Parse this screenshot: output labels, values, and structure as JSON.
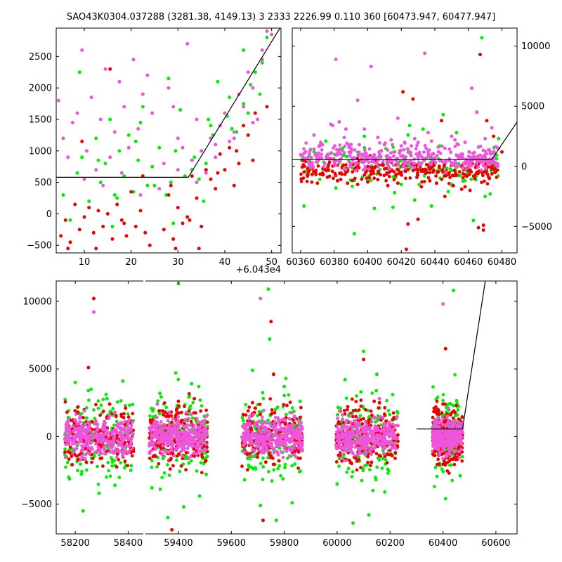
{
  "figure_title": "SAO43K0304.037288 (3281.38, 4149.13)    3 2333 2226.99 0.110 360 [60473.947, 60477.947]",
  "colors": {
    "green": "#00ee00",
    "red": "#ee0000",
    "pink": "#ee55dd",
    "model_line": "#000000"
  },
  "chart_data": [
    {
      "id": "top_left",
      "type": "scatter",
      "title": "",
      "xlabel": "",
      "ylabel": "",
      "x_offset_label": "+6.043e4",
      "xlim": [
        4,
        52
      ],
      "ylim": [
        -620,
        2950
      ],
      "x_ticks": [
        10,
        20,
        30,
        40,
        50
      ],
      "y_ticks": [
        -500,
        0,
        500,
        1000,
        1500,
        2000,
        2500
      ],
      "x_tick_labels": [
        "10",
        "20",
        "30",
        "40",
        "50"
      ],
      "y_tick_labels": [
        "−500",
        "0",
        "500",
        "1000",
        "1500",
        "2000",
        "2500"
      ],
      "y_axis_side": "left",
      "grid": false,
      "model_line": {
        "x": [
          4,
          32.2,
          53
        ],
        "y": [
          580,
          580,
          3100
        ]
      },
      "series": [
        {
          "color": "green",
          "x": [
            5.5,
            7,
            8.5,
            9.5,
            11,
            12.5,
            13.5,
            14.5,
            15.5,
            16.5,
            17.5,
            18.5,
            19.5,
            20.5,
            21.5,
            22.5,
            23.5,
            24.5,
            26,
            27.5,
            28.5,
            29.5,
            30.5,
            31.5,
            33.5,
            34.5,
            35.5,
            36.5,
            37.5,
            38.5,
            40.5,
            41.5,
            42.5,
            44,
            45.5,
            46.5,
            47.5,
            49,
            9,
            13,
            17,
            21,
            25,
            29,
            33,
            37,
            41,
            45,
            16,
            22,
            28,
            36,
            44,
            48
          ],
          "y": [
            300,
            -100,
            650,
            900,
            200,
            1200,
            500,
            800,
            1500,
            300,
            1000,
            600,
            1250,
            350,
            850,
            1700,
            450,
            750,
            1050,
            300,
            500,
            1000,
            1650,
            600,
            900,
            550,
            200,
            1500,
            1250,
            2100,
            1550,
            1350,
            1300,
            1750,
            2050,
            2250,
            1900,
            2800,
            2250,
            850,
            250,
            1150,
            450,
            -150,
            700,
            1400,
            1850,
            1600,
            -200,
            1450,
            2150,
            800,
            2600,
            2400
          ]
        },
        {
          "color": "red",
          "x": [
            5,
            6,
            7,
            8,
            9,
            10,
            11,
            12,
            13,
            14,
            15,
            16,
            17,
            18,
            19,
            20,
            21,
            22,
            23,
            24,
            27,
            28,
            29,
            30,
            31,
            32,
            33,
            34,
            35,
            36,
            37,
            38,
            39,
            40,
            41,
            42,
            43,
            44,
            45,
            46,
            6.5,
            12.5,
            18.5,
            28.5,
            32.5,
            38.5,
            42.5,
            46.5,
            49,
            9.5,
            15.5,
            22.5,
            29.5,
            34.5
          ],
          "y": [
            -350,
            -100,
            -450,
            150,
            -250,
            -50,
            100,
            -300,
            50,
            -200,
            0,
            -400,
            150,
            -100,
            -350,
            350,
            -200,
            50,
            -300,
            -500,
            -250,
            300,
            -400,
            100,
            -150,
            -50,
            600,
            250,
            -200,
            700,
            550,
            400,
            950,
            700,
            1050,
            450,
            800,
            1400,
            1250,
            850,
            -550,
            -550,
            -150,
            450,
            -100,
            650,
            1000,
            1600,
            1700,
            1150,
            2300,
            600,
            -550,
            -550
          ]
        },
        {
          "color": "pink",
          "x": [
            4.5,
            5.5,
            6.5,
            7.5,
            8.5,
            9.5,
            10.5,
            11.5,
            12.5,
            13.5,
            14.5,
            15.5,
            16.5,
            17.5,
            18.5,
            19.5,
            20.5,
            21.5,
            22.5,
            23.5,
            24.5,
            27,
            28,
            29,
            30,
            31,
            32,
            33,
            34,
            35,
            36,
            37,
            38,
            39,
            40,
            41,
            42,
            43,
            44,
            45,
            46,
            47,
            48,
            49,
            50,
            10,
            14,
            18,
            22,
            26,
            30,
            34,
            38,
            42,
            46,
            48
          ],
          "y": [
            1800,
            1200,
            900,
            1450,
            1600,
            2600,
            1000,
            1850,
            700,
            1500,
            2300,
            900,
            1300,
            2100,
            1700,
            1050,
            2450,
            1350,
            1900,
            2200,
            1600,
            800,
            2000,
            1700,
            1200,
            1050,
            2700,
            850,
            1500,
            1000,
            650,
            1200,
            1100,
            1400,
            1600,
            1150,
            1300,
            1900,
            1700,
            2250,
            1450,
            1500,
            2450,
            2900,
            2850,
            550,
            450,
            650,
            300,
            400,
            700,
            500,
            900,
            1200,
            2000,
            2600
          ]
        }
      ]
    },
    {
      "id": "top_right",
      "type": "scatter",
      "title": "",
      "xlabel": "",
      "ylabel": "",
      "xlim": [
        60355,
        60489
      ],
      "ylim": [
        -7200,
        11500
      ],
      "x_ticks": [
        60360,
        60380,
        60400,
        60420,
        60440,
        60460,
        60480
      ],
      "y_ticks": [
        -5000,
        0,
        5000,
        10000
      ],
      "x_tick_labels": [
        "60360",
        "60380",
        "60400",
        "60420",
        "60440",
        "60460",
        "60480"
      ],
      "y_tick_labels": [
        "−5000",
        "0",
        "5000",
        "10000"
      ],
      "y_axis_side": "right",
      "grid": false,
      "model_line": {
        "x": [
          60355,
          60473.9,
          60490
        ],
        "y": [
          560,
          560,
          3900
        ]
      },
      "band": {
        "x_start": 60360,
        "x_end": 60478,
        "center": 300,
        "spread": 500
      },
      "series": [
        {
          "color": "green",
          "x": [
            60362,
            60368,
            60375,
            60381,
            60386,
            60392,
            60398,
            60404,
            60410,
            60416,
            60420,
            60424,
            60428,
            60433,
            60438,
            60443,
            60448,
            60453,
            60458,
            60463,
            60468,
            60473,
            60478,
            60400,
            60425,
            60450,
            60470,
            60385,
            60415,
            60445
          ],
          "y": [
            -3300,
            1200,
            2100,
            -1800,
            900,
            -5600,
            2500,
            -3500,
            1800,
            -2200,
            -1500,
            2600,
            -2800,
            3100,
            -3300,
            1700,
            -2100,
            2800,
            -1200,
            -4500,
            10700,
            -2300,
            2300,
            -1200,
            3400,
            -1500,
            -2500,
            1500,
            -3400,
            4300
          ]
        },
        {
          "color": "red",
          "x": [
            60364,
            60370,
            60376,
            60382,
            60388,
            60394,
            60400,
            60406,
            60412,
            60418,
            60421,
            60424,
            60427,
            60432,
            60437,
            60441,
            60446,
            60451,
            60456,
            60461,
            60466,
            60469,
            60475,
            60480,
            60430,
            60444,
            60458,
            60469,
            60423,
            60467,
            60471
          ],
          "y": [
            -700,
            -1400,
            -900,
            -1200,
            -1400,
            -1500,
            -1300,
            -1100,
            -1600,
            -1400,
            6200,
            -4800,
            5600,
            -1700,
            -1200,
            -1400,
            -2500,
            -1600,
            -1900,
            -2000,
            -5100,
            -5300,
            2500,
            1200,
            -4400,
            3800,
            -1700,
            -4900,
            -6900,
            9300,
            3800
          ]
        },
        {
          "color": "pink",
          "x": [
            60363,
            60368,
            60373,
            60378,
            60381,
            60383,
            60386,
            60390,
            60394,
            60398,
            60402,
            60406,
            60410,
            60414,
            60418,
            60422,
            60426,
            60430,
            60434,
            60438,
            60442,
            60446,
            60450,
            60454,
            60458,
            60462,
            60466,
            60470,
            60474,
            60478,
            60379,
            60387,
            60408,
            60420,
            60436,
            60452,
            60465,
            60372,
            60395,
            60428
          ],
          "y": [
            1200,
            2600,
            1800,
            3500,
            8900,
            3700,
            2400,
            1500,
            5500,
            3100,
            8300,
            2400,
            1800,
            2200,
            4000,
            2000,
            1700,
            2000,
            9400,
            2100,
            1600,
            1500,
            2500,
            1800,
            2000,
            6500,
            1600,
            2300,
            3200,
            1500,
            3400,
            3100,
            1300,
            1700,
            2800,
            2200,
            4500,
            2000,
            1800,
            2300
          ]
        }
      ]
    },
    {
      "id": "bottom",
      "type": "scatter",
      "title": "",
      "xlabel": "",
      "ylabel": "",
      "xlim": [
        58128,
        60680
      ],
      "ylim": [
        -7200,
        11500
      ],
      "axis_break": [
        58460,
        59270
      ],
      "x_ticks": [
        58200,
        58400,
        59400,
        59600,
        59800,
        60000,
        60200,
        60400,
        60600
      ],
      "y_ticks": [
        -5000,
        0,
        5000,
        10000
      ],
      "x_tick_labels": [
        "58200",
        "58400",
        "59400",
        "59600",
        "59800",
        "60000",
        "60200",
        "60400",
        "60600"
      ],
      "y_tick_labels": [
        "−5000",
        "0",
        "5000",
        "10000"
      ],
      "y_axis_side": "left",
      "grid": false,
      "model_line": {
        "x": [
          60300,
          60473.9,
          60560
        ],
        "y": [
          560,
          560,
          11500
        ]
      },
      "seasons": [
        [
          58160,
          58420
        ],
        [
          59290,
          59510
        ],
        [
          59640,
          59870
        ],
        [
          59995,
          60230
        ],
        [
          60360,
          60475
        ]
      ],
      "series": [
        {
          "color": "green",
          "x": [
            58175,
            58200,
            58230,
            58260,
            58290,
            58320,
            58350,
            58380,
            58410,
            59300,
            59330,
            59360,
            59390,
            59420,
            59450,
            59480,
            59505,
            59650,
            59680,
            59710,
            59740,
            59770,
            59800,
            59830,
            59860,
            60000,
            60030,
            60060,
            60090,
            60120,
            60150,
            60180,
            60210,
            60380,
            60410,
            60440,
            60465,
            59400,
            59745,
            60100
          ],
          "y": [
            -3000,
            4000,
            -5500,
            3500,
            -4200,
            2800,
            -3600,
            4100,
            -2500,
            -3800,
            3200,
            -6000,
            4700,
            -5200,
            3900,
            -4400,
            -2800,
            -3200,
            4900,
            -5100,
            10900,
            -6200,
            3700,
            -4900,
            2600,
            -3500,
            4200,
            -6400,
            3300,
            -5800,
            4600,
            -4100,
            3100,
            2900,
            -4600,
            10800,
            -2900,
            11300,
            7200,
            6300
          ]
        },
        {
          "color": "red",
          "x": [
            58180,
            58210,
            58240,
            58270,
            58300,
            58330,
            58360,
            58390,
            58420,
            59310,
            59340,
            59370,
            59400,
            59430,
            59460,
            59490,
            59660,
            59690,
            59720,
            59750,
            59780,
            59810,
            59840,
            60010,
            60040,
            60070,
            60100,
            60130,
            60160,
            60190,
            60220,
            60370,
            60400,
            60430,
            60460,
            58250,
            59760,
            60140,
            60410,
            59375
          ],
          "y": [
            -1200,
            1800,
            -900,
            10200,
            -1600,
            2400,
            -1300,
            2100,
            -1100,
            -1400,
            1900,
            -1700,
            2600,
            -1200,
            2800,
            -1500,
            -1300,
            2100,
            -6200,
            8500,
            -1800,
            2300,
            -1100,
            -1400,
            2200,
            -1600,
            5700,
            -1900,
            2500,
            -1300,
            -1200,
            -1100,
            2400,
            -1700,
            -800,
            5100,
            4600,
            2600,
            6500,
            -6900
          ]
        },
        {
          "color": "pink",
          "x": [
            58170,
            58190,
            58220,
            58250,
            58280,
            58310,
            58340,
            58370,
            58400,
            59300,
            59320,
            59350,
            59380,
            59410,
            59440,
            59470,
            59500,
            59650,
            59670,
            59700,
            59730,
            59760,
            59790,
            59820,
            59850,
            60000,
            60020,
            60050,
            60080,
            60110,
            60140,
            60170,
            60200,
            60230,
            60370,
            60390,
            60420,
            60450,
            58270,
            59365,
            59710,
            60160,
            60400
          ],
          "y": [
            900,
            -300,
            1500,
            -800,
            400,
            1100,
            -500,
            600,
            -1200,
            800,
            2400,
            -300,
            1300,
            -1100,
            500,
            -800,
            1200,
            600,
            1500,
            -400,
            1000,
            -900,
            500,
            1300,
            -500,
            700,
            1600,
            -300,
            1000,
            -1200,
            400,
            1400,
            -600,
            800,
            1200,
            -400,
            2100,
            500,
            9200,
            1800,
            10200,
            2800,
            9800
          ]
        }
      ]
    }
  ]
}
